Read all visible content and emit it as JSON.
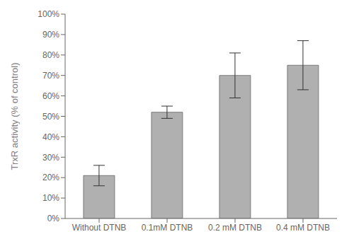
{
  "chart_data": {
    "type": "bar",
    "categories": [
      "Without DTNB",
      "0.1mM DTNB",
      "0.2 mM DTNB",
      "0.4 mM DTNB"
    ],
    "values": [
      21,
      52,
      70,
      75
    ],
    "errors": [
      5,
      3,
      11,
      12
    ],
    "color": "#b0b0b0",
    "ylabel": "TrxR activity (% of control)",
    "ylim": [
      0,
      100
    ],
    "yticks": [
      {
        "value": 0,
        "label": "0%"
      },
      {
        "value": 10,
        "label": "10%"
      },
      {
        "value": 20,
        "label": "20%"
      },
      {
        "value": 30,
        "label": "30%"
      },
      {
        "value": 40,
        "label": "40%"
      },
      {
        "value": 50,
        "label": "50%"
      },
      {
        "value": 60,
        "label": "60%"
      },
      {
        "value": 70,
        "label": "70%"
      },
      {
        "value": 80,
        "label": "80%"
      },
      {
        "value": 90,
        "label": "90%"
      },
      {
        "value": 100,
        "label": "100%"
      }
    ],
    "grid": false
  }
}
